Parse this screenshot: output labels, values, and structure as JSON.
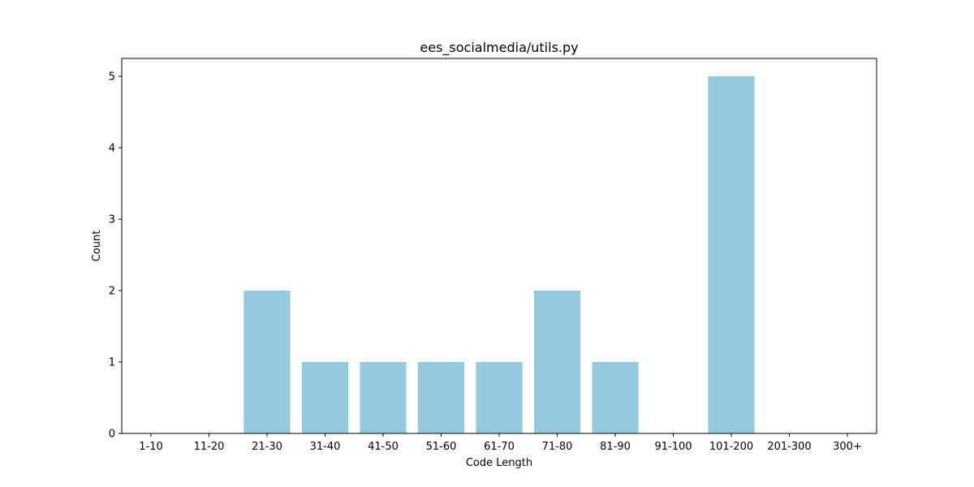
{
  "chart_data": {
    "type": "bar",
    "title": "ees_socialmedia/utils.py",
    "xlabel": "Code Length",
    "ylabel": "Count",
    "categories": [
      "1-10",
      "11-20",
      "21-30",
      "31-40",
      "41-50",
      "51-60",
      "61-70",
      "71-80",
      "81-90",
      "91-100",
      "101-200",
      "201-300",
      "300+"
    ],
    "values": [
      0,
      0,
      2,
      1,
      1,
      1,
      1,
      2,
      1,
      0,
      5,
      0,
      0
    ],
    "ylim": [
      0,
      5.25
    ],
    "yticks": [
      0,
      1,
      2,
      3,
      4,
      5
    ],
    "bar_color": "#96c9dd",
    "grid": false,
    "legend": false
  }
}
